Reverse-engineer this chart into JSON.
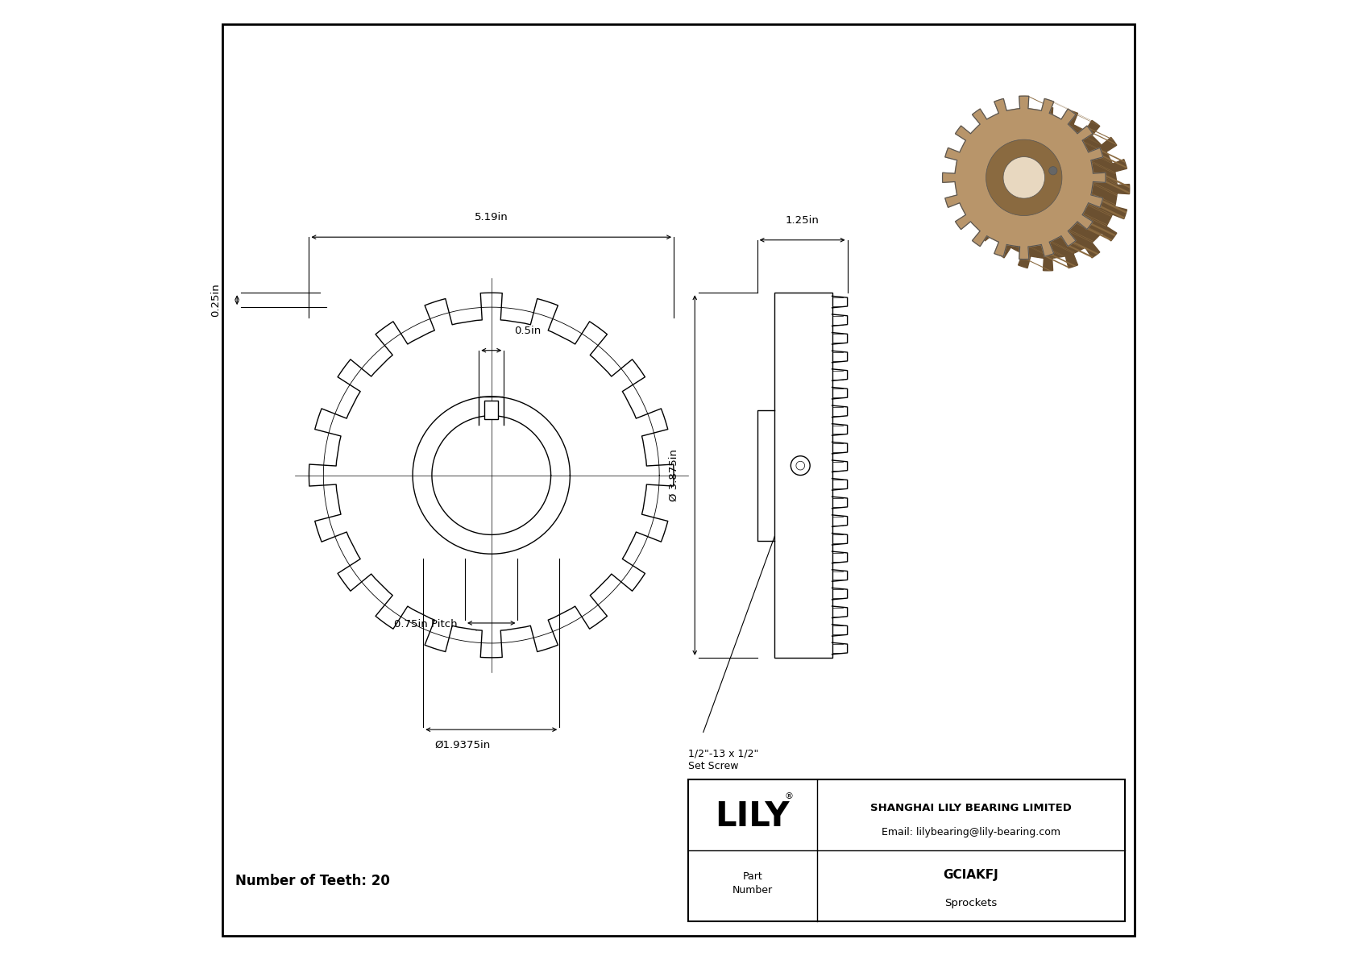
{
  "bg_color": "#ffffff",
  "line_color": "#000000",
  "title": "GCIAKFJ",
  "subtitle": "Sprockets",
  "company": "SHANGHAI LILY BEARING LIMITED",
  "email": "Email: lilybearing@lily-bearing.com",
  "part_label": "Part\nNumber",
  "logo_text": "LILY",
  "num_teeth": "Number of Teeth: 20",
  "dim_519": "5.19in",
  "dim_05": "0.5in",
  "dim_025": "0.25in",
  "dim_125": "1.25in",
  "dim_3875": "Ø 3.875in",
  "dim_pitch": "0.75in Pitch",
  "dim_bore": "Ø1.9375in",
  "dim_setscrew": "1/2\"-13 x 1/2\"\nSet Screw"
}
